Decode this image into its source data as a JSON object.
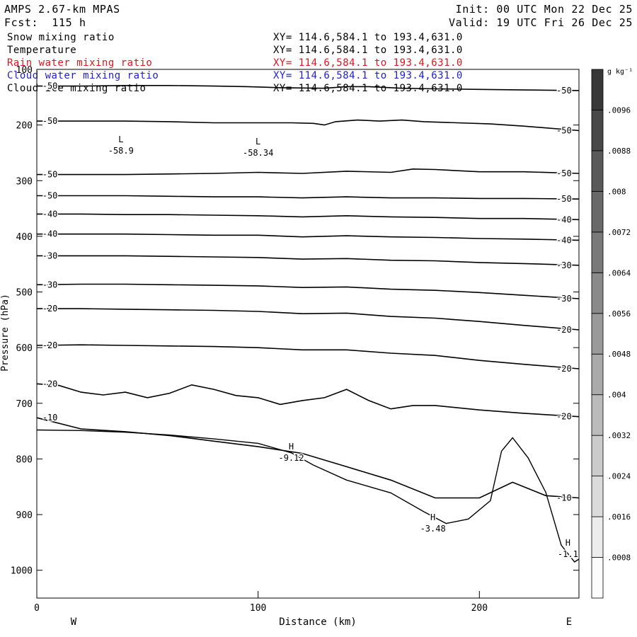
{
  "header": {
    "model": "AMPS 2.67-km MPAS",
    "forecast": "Fcst:  115 h",
    "init": "Init: 00 UTC Mon 22 Dec 25",
    "valid": "Valid: 19 UTC Fri 26 Dec 25"
  },
  "fields": [
    {
      "name": "Snow mixing ratio",
      "range": "XY= 114.6,584.1 to 193.4,631.0",
      "color": "#000000"
    },
    {
      "name": "Temperature",
      "range": "XY= 114.6,584.1 to 193.4,631.0",
      "color": "#000000"
    },
    {
      "name": "Rain water mixing ratio",
      "range": "XY= 114.6,584.1 to 193.4,631.0",
      "color": "#e0141e"
    },
    {
      "name": "Cloud water mixing ratio",
      "range": "XY= 114.6,584.1 to 193.4,631.0",
      "color": "#1e1ed2"
    },
    {
      "name": "Cloud ice mixing ratio",
      "range": "XY= 114.6,584.1 to 193.4,631.0",
      "color": "#000000"
    }
  ],
  "chart_data": {
    "type": "contour",
    "xlabel": "Distance (km)",
    "ylabel": "Pressure (hPa)",
    "xlim": [
      0,
      245
    ],
    "ylim": [
      1050,
      100
    ],
    "xticks": [
      0,
      100,
      200
    ],
    "yticks": [
      100,
      200,
      300,
      400,
      500,
      600,
      700,
      800,
      900,
      1000
    ],
    "x_end_labels": {
      "left": "W",
      "right": "E"
    },
    "colorbar": {
      "unit": "g kg⁻¹",
      "ticks": [
        ".0008",
        ".0016",
        ".0024",
        ".0032",
        ".004",
        ".0048",
        ".0056",
        ".0064",
        ".0072",
        ".008",
        ".0088",
        ".0096"
      ]
    },
    "contours": [
      {
        "value": -50,
        "points": [
          [
            -2,
            130
          ],
          [
            20,
            130
          ],
          [
            40,
            129
          ],
          [
            60,
            129
          ],
          [
            80,
            130
          ],
          [
            95,
            131
          ],
          [
            110,
            133
          ],
          [
            130,
            134
          ],
          [
            140,
            131
          ],
          [
            150,
            131
          ],
          [
            165,
            134
          ],
          [
            180,
            135
          ],
          [
            200,
            136
          ],
          [
            220,
            137
          ],
          [
            245,
            138
          ]
        ]
      },
      {
        "value": -50,
        "points": [
          [
            -2,
            193
          ],
          [
            20,
            193
          ],
          [
            40,
            193
          ],
          [
            60,
            194
          ],
          [
            80,
            196
          ],
          [
            100,
            196
          ],
          [
            115,
            196
          ],
          [
            125,
            197
          ],
          [
            130,
            200
          ],
          [
            135,
            194
          ],
          [
            145,
            191
          ],
          [
            155,
            193
          ],
          [
            165,
            191
          ],
          [
            175,
            194
          ],
          [
            190,
            196
          ],
          [
            205,
            198
          ],
          [
            220,
            202
          ],
          [
            245,
            210
          ]
        ]
      },
      {
        "value": -50,
        "points": [
          [
            -2,
            289
          ],
          [
            20,
            289
          ],
          [
            40,
            289
          ],
          [
            60,
            288
          ],
          [
            80,
            287
          ],
          [
            100,
            285
          ],
          [
            120,
            287
          ],
          [
            140,
            283
          ],
          [
            160,
            285
          ],
          [
            170,
            279
          ],
          [
            180,
            280
          ],
          [
            200,
            284
          ],
          [
            220,
            284
          ],
          [
            245,
            287
          ]
        ]
      },
      {
        "value": -50,
        "points": [
          [
            -2,
            327
          ],
          [
            20,
            327
          ],
          [
            40,
            327
          ],
          [
            60,
            328
          ],
          [
            80,
            329
          ],
          [
            100,
            329
          ],
          [
            120,
            331
          ],
          [
            140,
            329
          ],
          [
            160,
            331
          ],
          [
            180,
            331
          ],
          [
            200,
            332
          ],
          [
            220,
            332
          ],
          [
            245,
            333
          ]
        ]
      },
      {
        "value": -40,
        "points": [
          [
            -2,
            360
          ],
          [
            20,
            360
          ],
          [
            40,
            361
          ],
          [
            60,
            361
          ],
          [
            80,
            362
          ],
          [
            100,
            363
          ],
          [
            120,
            365
          ],
          [
            140,
            363
          ],
          [
            160,
            365
          ],
          [
            180,
            366
          ],
          [
            200,
            368
          ],
          [
            220,
            368
          ],
          [
            245,
            370
          ]
        ]
      },
      {
        "value": -40,
        "points": [
          [
            -2,
            396
          ],
          [
            20,
            396
          ],
          [
            40,
            396
          ],
          [
            60,
            397
          ],
          [
            80,
            398
          ],
          [
            100,
            398
          ],
          [
            120,
            401
          ],
          [
            140,
            399
          ],
          [
            160,
            401
          ],
          [
            180,
            402
          ],
          [
            200,
            404
          ],
          [
            220,
            405
          ],
          [
            245,
            407
          ]
        ]
      },
      {
        "value": -30,
        "points": [
          [
            -2,
            435
          ],
          [
            20,
            435
          ],
          [
            40,
            435
          ],
          [
            60,
            436
          ],
          [
            80,
            437
          ],
          [
            100,
            438
          ],
          [
            120,
            441
          ],
          [
            140,
            440
          ],
          [
            160,
            443
          ],
          [
            180,
            444
          ],
          [
            200,
            447
          ],
          [
            220,
            449
          ],
          [
            245,
            452
          ]
        ]
      },
      {
        "value": -30,
        "points": [
          [
            -2,
            487
          ],
          [
            20,
            486
          ],
          [
            40,
            486
          ],
          [
            60,
            487
          ],
          [
            80,
            488
          ],
          [
            100,
            489
          ],
          [
            120,
            492
          ],
          [
            140,
            491
          ],
          [
            160,
            495
          ],
          [
            180,
            497
          ],
          [
            200,
            501
          ],
          [
            220,
            506
          ],
          [
            245,
            512
          ]
        ]
      },
      {
        "value": -20,
        "points": [
          [
            -2,
            530
          ],
          [
            20,
            530
          ],
          [
            40,
            531
          ],
          [
            60,
            532
          ],
          [
            80,
            533
          ],
          [
            100,
            535
          ],
          [
            120,
            539
          ],
          [
            140,
            538
          ],
          [
            160,
            544
          ],
          [
            180,
            547
          ],
          [
            200,
            553
          ],
          [
            220,
            560
          ],
          [
            245,
            568
          ]
        ]
      },
      {
        "value": -20,
        "points": [
          [
            -2,
            596
          ],
          [
            20,
            595
          ],
          [
            40,
            596
          ],
          [
            60,
            597
          ],
          [
            80,
            598
          ],
          [
            100,
            600
          ],
          [
            120,
            604
          ],
          [
            140,
            604
          ],
          [
            160,
            610
          ],
          [
            180,
            614
          ],
          [
            200,
            623
          ],
          [
            220,
            630
          ],
          [
            245,
            638
          ]
        ]
      },
      {
        "value": -20,
        "points": [
          [
            -2,
            665
          ],
          [
            10,
            668
          ],
          [
            20,
            680
          ],
          [
            30,
            685
          ],
          [
            40,
            680
          ],
          [
            50,
            690
          ],
          [
            60,
            682
          ],
          [
            70,
            667
          ],
          [
            80,
            675
          ],
          [
            90,
            686
          ],
          [
            100,
            690
          ],
          [
            110,
            702
          ],
          [
            120,
            695
          ],
          [
            130,
            690
          ],
          [
            140,
            675
          ],
          [
            150,
            695
          ],
          [
            160,
            710
          ],
          [
            170,
            704
          ],
          [
            180,
            704
          ],
          [
            200,
            712
          ],
          [
            220,
            718
          ],
          [
            245,
            724
          ]
        ]
      },
      {
        "value": -10,
        "points": [
          [
            -2,
            726
          ],
          [
            20,
            746
          ],
          [
            40,
            751
          ],
          [
            60,
            758
          ],
          [
            80,
            768
          ],
          [
            100,
            778
          ],
          [
            120,
            790
          ],
          [
            140,
            814
          ],
          [
            160,
            838
          ],
          [
            180,
            870
          ],
          [
            200,
            870
          ],
          [
            215,
            842
          ],
          [
            230,
            866
          ],
          [
            245,
            870
          ]
        ]
      }
    ],
    "lows": [
      {
        "label": "L",
        "value": "-58.9",
        "x": 38,
        "p": 236
      },
      {
        "label": "L",
        "value": "-58.34",
        "x": 100,
        "p": 240
      }
    ],
    "highs": [
      {
        "label": "H",
        "value": "-9.12",
        "x": 115,
        "p": 788
      },
      {
        "label": "H",
        "value": "-3.48",
        "x": 179,
        "p": 915
      },
      {
        "label": "H",
        "value": "-1.1",
        "x": 240,
        "p": 961
      }
    ],
    "terrain": [
      [
        -2,
        748
      ],
      [
        20,
        749
      ],
      [
        40,
        752
      ],
      [
        60,
        757
      ],
      [
        80,
        764
      ],
      [
        100,
        772
      ],
      [
        115,
        789
      ],
      [
        125,
        811
      ],
      [
        140,
        838
      ],
      [
        160,
        861
      ],
      [
        175,
        895
      ],
      [
        185,
        916
      ],
      [
        195,
        908
      ],
      [
        205,
        875
      ],
      [
        210,
        786
      ],
      [
        215,
        762
      ],
      [
        222,
        798
      ],
      [
        230,
        860
      ],
      [
        237,
        955
      ],
      [
        243,
        985
      ],
      [
        245,
        980
      ]
    ]
  }
}
